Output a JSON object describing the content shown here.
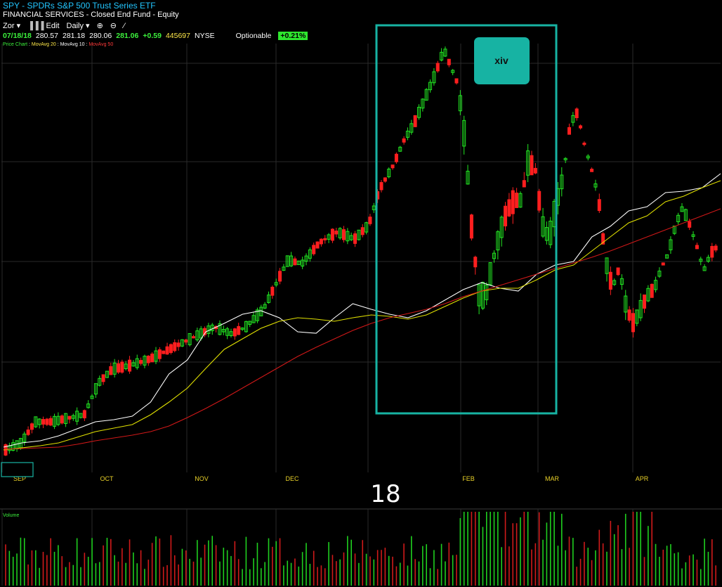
{
  "header": {
    "title": "SPY - SPDRs S&P 500 Trust Series ETF",
    "subtitle": "FINANCIAL SERVICES - Closed End Fund - Equity",
    "toolbar": {
      "zoom": "Zor",
      "edit": "Edit",
      "period": "Daily"
    },
    "quote": {
      "date": "07/18/18",
      "open": "280.57",
      "high": "281.18",
      "low": "280.06",
      "last": "281.06",
      "change": "+0.59",
      "volume": "445697",
      "exchange": "NYSE",
      "optionable": "Optionable",
      "change_pct": "+0.21%"
    },
    "legend": {
      "price": "Price Chart",
      "ma20": "MovAvg 20",
      "ma10": "MovAvg 10",
      "ma50": "MovAvg 50"
    }
  },
  "colors": {
    "up": "#22e822",
    "down": "#ff1f1f",
    "ma10": "#ffffff",
    "ma20": "#e0e000",
    "ma50": "#d01818",
    "grid": "#2a2a2a",
    "highlight": "#17b3a3",
    "axis_label": "#e8d028",
    "volume_up": "#1fcf1f",
    "volume_down": "#d01a1a"
  },
  "annotations": {
    "box_label": "xiv",
    "year_label": "18"
  },
  "chart_data": {
    "type": "candlestick",
    "x_month_labels": [
      "SEP",
      "OCT",
      "NOV",
      "DEC",
      "FEB",
      "MAR",
      "APR"
    ],
    "volume_label": "Volume",
    "grid": true,
    "series": [
      {
        "name": "MovAvg 10",
        "values": [
          36,
          42,
          45,
          52,
          62,
          72,
          75,
          80,
          100,
          140,
          160,
          200,
          212,
          225,
          230,
          220,
          200,
          198,
          220,
          240,
          232,
          225,
          220,
          230,
          245,
          260,
          270,
          262,
          258,
          282,
          295,
          300,
          335,
          350,
          372,
          378,
          398,
          400,
          405,
          425
        ]
      },
      {
        "name": "MovAvg 20",
        "values": [
          32,
          35,
          38,
          42,
          50,
          58,
          63,
          68,
          82,
          100,
          120,
          148,
          175,
          190,
          205,
          215,
          220,
          218,
          215,
          220,
          224,
          222,
          218,
          224,
          236,
          248,
          258,
          262,
          262,
          274,
          288,
          295,
          315,
          335,
          355,
          365,
          385,
          393,
          405,
          415
        ]
      },
      {
        "name": "MovAvg 50",
        "values": [
          33,
          34,
          35,
          36,
          40,
          45,
          49,
          53,
          58,
          66,
          78,
          91,
          105,
          120,
          135,
          150,
          165,
          178,
          190,
          202,
          212,
          220,
          226,
          232,
          240,
          250,
          258,
          266,
          274,
          282,
          290,
          298,
          306,
          315,
          325,
          335,
          345,
          355,
          365,
          375
        ]
      }
    ]
  }
}
